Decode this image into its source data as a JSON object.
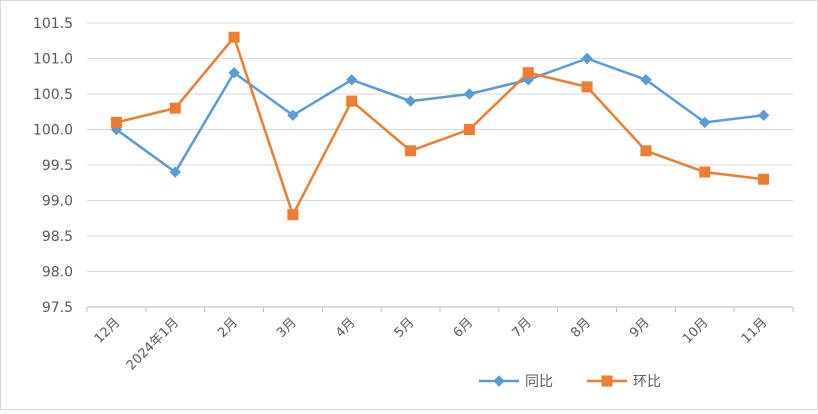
{
  "chart_data": {
    "type": "line",
    "categories": [
      "12月",
      "2024年1月",
      "2月",
      "3月",
      "4月",
      "5月",
      "6月",
      "7月",
      "8月",
      "9月",
      "10月",
      "11月"
    ],
    "series": [
      {
        "name": "同比",
        "color": "#5b9bd5",
        "marker": "diamond",
        "values": [
          100.0,
          99.4,
          100.8,
          100.2,
          100.7,
          100.4,
          100.5,
          100.7,
          101.0,
          100.7,
          100.1,
          100.2
        ]
      },
      {
        "name": "环比",
        "color": "#ed7d31",
        "marker": "square",
        "values": [
          100.1,
          100.3,
          101.3,
          98.8,
          100.4,
          99.7,
          100.0,
          100.8,
          100.6,
          99.7,
          99.4,
          99.3
        ]
      }
    ],
    "ylim": [
      97.5,
      101.5
    ],
    "yticks": [
      "97.5",
      "98.0",
      "98.5",
      "99.0",
      "99.5",
      "100.0",
      "100.5",
      "101.0",
      "101.5"
    ],
    "grid": true,
    "legend": "bottom-right",
    "gridColor": "#d9d9d9",
    "axisColor": "#bfbfbf"
  }
}
